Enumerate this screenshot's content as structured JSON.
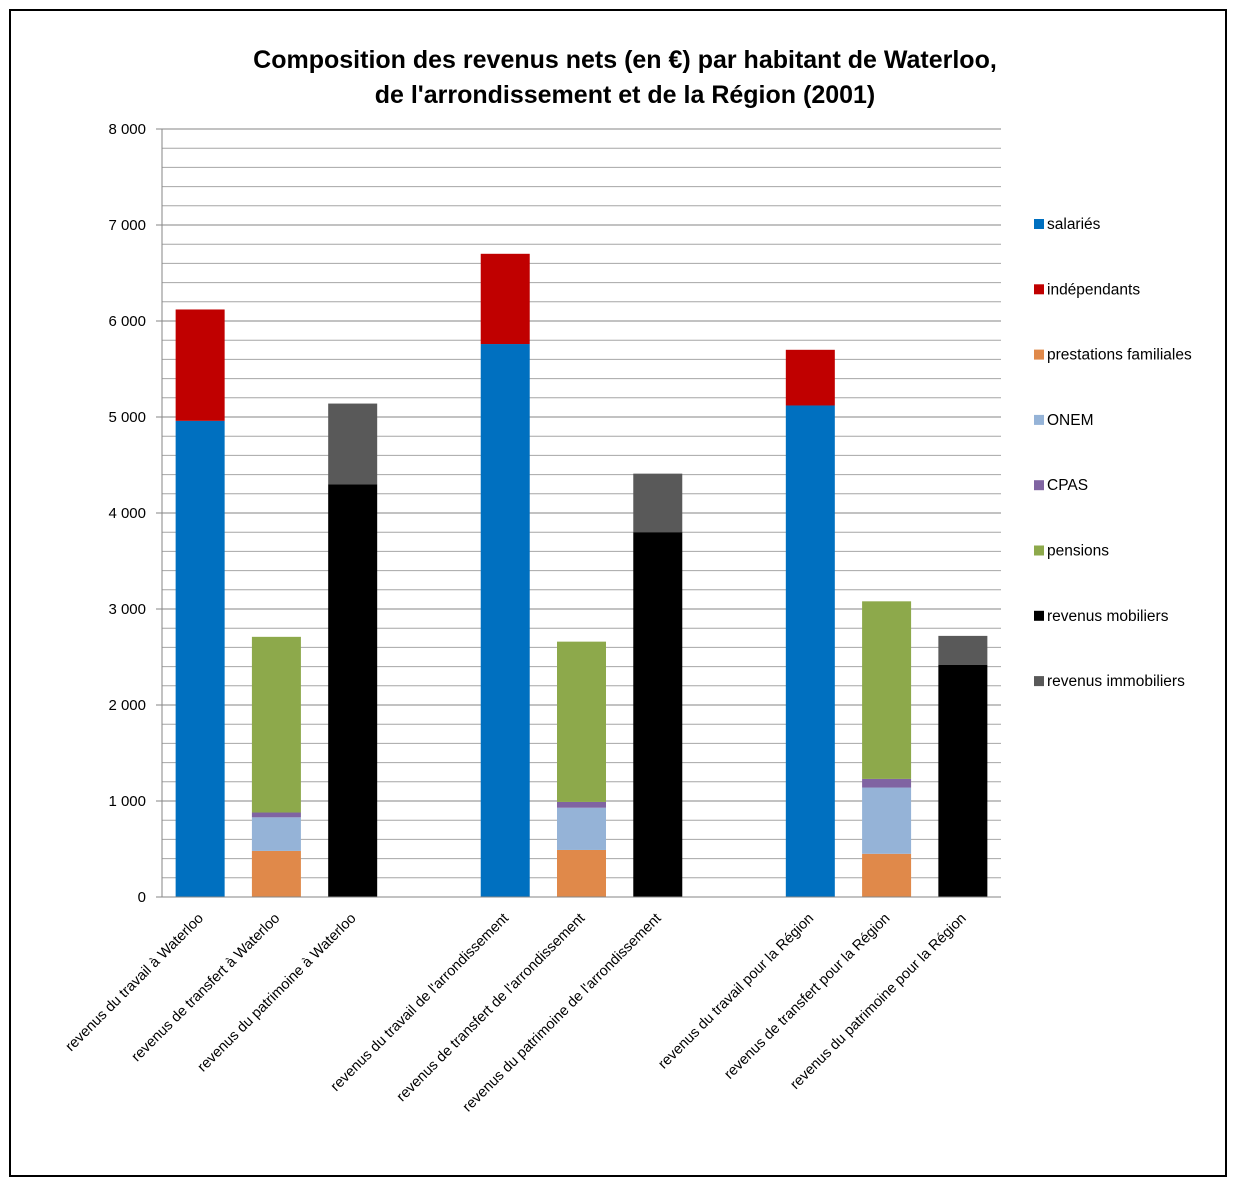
{
  "chart_data": {
    "type": "bar",
    "stacked": true,
    "title_lines": [
      "Composition  des revenus nets (en €) par habitant de Waterloo,",
      "de l'arrondissement  et de la Région (2001)"
    ],
    "xlabel": "",
    "ylabel": "",
    "ylim": [
      0,
      8000
    ],
    "y_ticks": [
      0,
      1000,
      2000,
      3000,
      4000,
      5000,
      6000,
      7000,
      8000
    ],
    "y_tick_labels": [
      "0",
      "1 000",
      "2 000",
      "3 000",
      "4 000",
      "5 000",
      "6 000",
      "7 000",
      "8 000"
    ],
    "grid": true,
    "legend_position": "right",
    "categories": [
      "revenus du travail à Waterloo",
      "revenus de transfert à Waterloo",
      "revenus du patrimoine à Waterloo",
      "",
      "revenus du travail  de l'arrondissement",
      "revenus de transfert de l'arrondissement",
      "revenus du patrimoine  de l'arrondissement",
      "",
      "revenus du travail  pour la Région",
      "revenus de transfert pour la Région",
      "revenus du patrimoine  pour la Région"
    ],
    "series": [
      {
        "name": "salariés",
        "color": "#0070C0",
        "values": [
          4960,
          0,
          0,
          0,
          5760,
          0,
          0,
          0,
          5120,
          0,
          0
        ]
      },
      {
        "name": "indépendants",
        "color": "#C00000",
        "values": [
          1160,
          0,
          0,
          0,
          940,
          0,
          0,
          0,
          580,
          0,
          0
        ]
      },
      {
        "name": "prestations familiales",
        "color": "#E0894A",
        "values": [
          0,
          480,
          0,
          0,
          0,
          490,
          0,
          0,
          0,
          450,
          0
        ]
      },
      {
        "name": "ONEM",
        "color": "#95B3D7",
        "values": [
          0,
          350,
          0,
          0,
          0,
          440,
          0,
          0,
          0,
          690,
          0
        ]
      },
      {
        "name": "CPAS",
        "color": "#8064A2",
        "values": [
          0,
          50,
          0,
          0,
          0,
          60,
          0,
          0,
          0,
          90,
          0
        ]
      },
      {
        "name": "pensions",
        "color": "#8DA94B",
        "values": [
          0,
          1830,
          0,
          0,
          0,
          1670,
          0,
          0,
          0,
          1850,
          0
        ]
      },
      {
        "name": "revenus mobiliers",
        "color": "#000000",
        "values": [
          0,
          0,
          4300,
          0,
          0,
          0,
          3800,
          0,
          0,
          0,
          2420
        ]
      },
      {
        "name": "revenus immobiliers",
        "color": "#595959",
        "values": [
          0,
          0,
          840,
          0,
          0,
          0,
          610,
          0,
          0,
          0,
          300
        ]
      }
    ]
  }
}
